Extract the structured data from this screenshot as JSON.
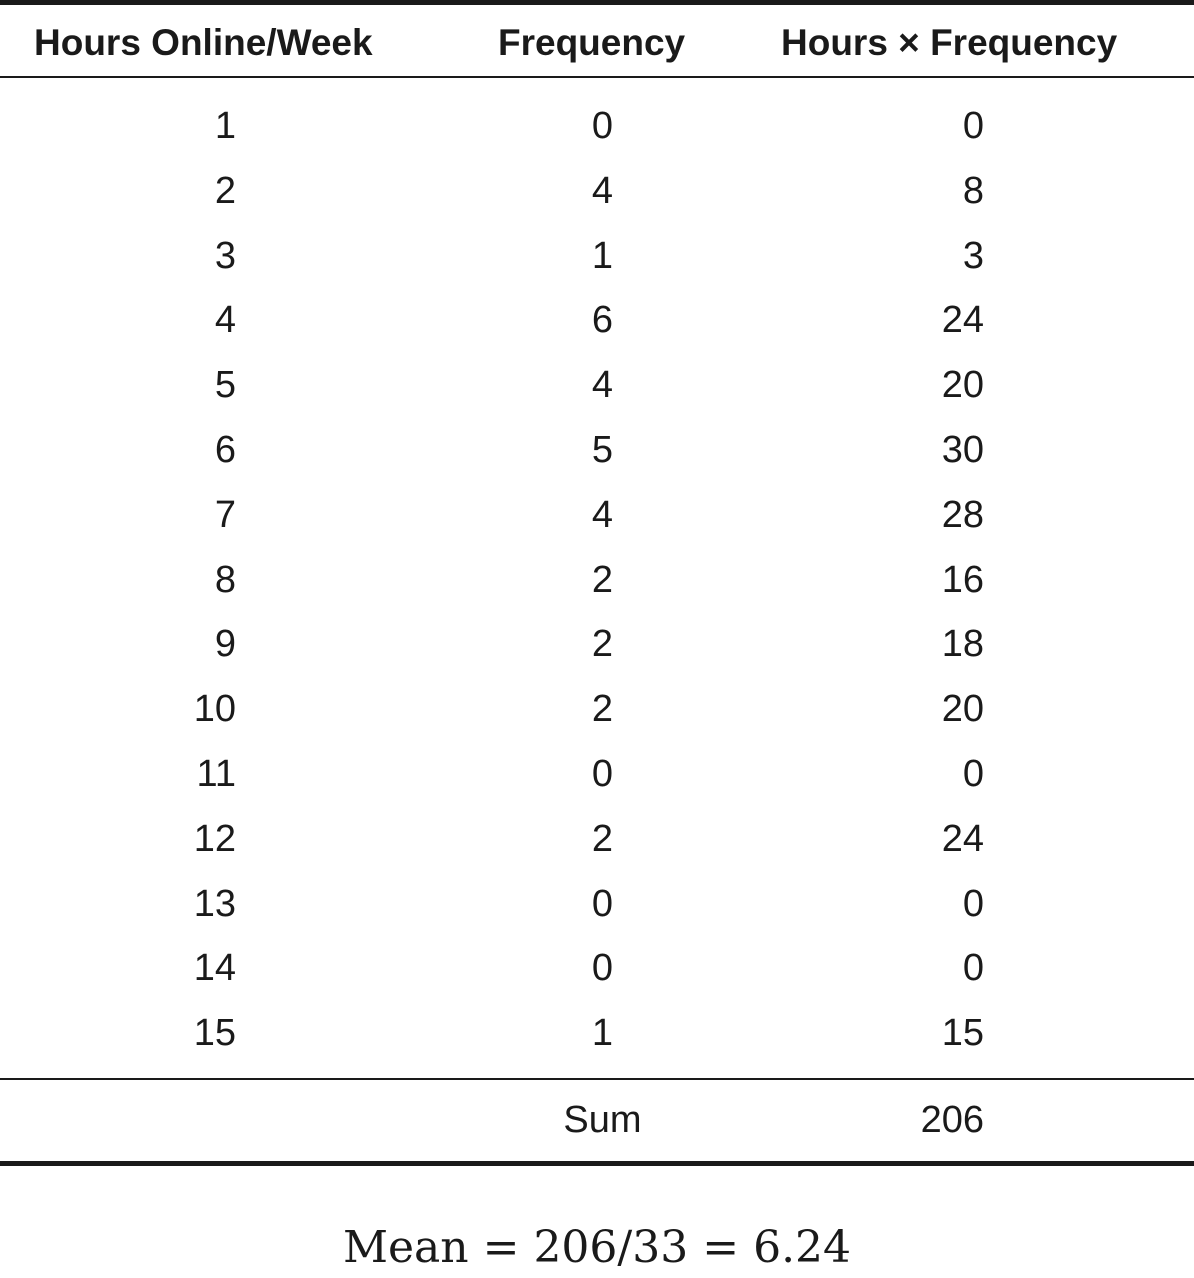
{
  "table": {
    "headers": {
      "hours": "Hours Online/Week",
      "frequency": "Frequency",
      "product": "Hours × Frequency"
    },
    "rows": [
      {
        "hours": "1",
        "frequency": "0",
        "product": "0"
      },
      {
        "hours": "2",
        "frequency": "4",
        "product": "8"
      },
      {
        "hours": "3",
        "frequency": "1",
        "product": "3"
      },
      {
        "hours": "4",
        "frequency": "6",
        "product": "24"
      },
      {
        "hours": "5",
        "frequency": "4",
        "product": "20"
      },
      {
        "hours": "6",
        "frequency": "5",
        "product": "30"
      },
      {
        "hours": "7",
        "frequency": "4",
        "product": "28"
      },
      {
        "hours": "8",
        "frequency": "2",
        "product": "16"
      },
      {
        "hours": "9",
        "frequency": "2",
        "product": "18"
      },
      {
        "hours": "10",
        "frequency": "2",
        "product": "20"
      },
      {
        "hours": "11",
        "frequency": "0",
        "product": "0"
      },
      {
        "hours": "12",
        "frequency": "2",
        "product": "24"
      },
      {
        "hours": "13",
        "frequency": "0",
        "product": "0"
      },
      {
        "hours": "14",
        "frequency": "0",
        "product": "0"
      },
      {
        "hours": "15",
        "frequency": "1",
        "product": "15"
      }
    ],
    "sum_label": "Sum",
    "sum_value": "206"
  },
  "formula": "Mean = 206/33 = 6.24"
}
